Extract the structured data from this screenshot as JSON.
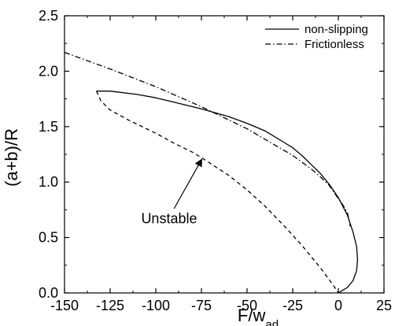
{
  "chart_data": {
    "type": "line",
    "xlabel": "F/w",
    "xlabel_sub": "ad",
    "ylabel": "(a+b)/R",
    "xlim": [
      -150,
      25
    ],
    "ylim": [
      0.0,
      2.5
    ],
    "x_ticks": [
      -150,
      -125,
      -100,
      -75,
      -50,
      -25,
      0,
      25
    ],
    "y_ticks": [
      0.0,
      0.5,
      1.0,
      1.5,
      2.0,
      2.5
    ],
    "x_tick_labels": [
      "-150",
      "-125",
      "-100",
      "-75",
      "-50",
      "-25",
      "0",
      "25"
    ],
    "y_tick_labels": [
      "0.0",
      "0.5",
      "1.0",
      "1.5",
      "2.0",
      "2.5"
    ],
    "grid": false,
    "legend_position": "top-right",
    "series": [
      {
        "name": "non-slipping",
        "style": "solid",
        "color": "#000000",
        "x": [
          -132.5,
          -125,
          -110,
          -100,
          -90,
          -75,
          -60,
          -50,
          -40,
          -30,
          -25,
          -20,
          -15,
          -10,
          -5,
          0,
          5,
          8,
          10,
          10.5,
          10,
          8,
          5,
          2,
          0
        ],
        "y": [
          1.82,
          1.82,
          1.79,
          1.76,
          1.72,
          1.66,
          1.59,
          1.53,
          1.46,
          1.36,
          1.31,
          1.24,
          1.16,
          1.08,
          0.98,
          0.86,
          0.7,
          0.55,
          0.42,
          0.3,
          0.2,
          0.11,
          0.05,
          0.02,
          0.0
        ]
      },
      {
        "name": "Frictionless",
        "style": "dashdot",
        "color": "#000000",
        "x": [
          -150,
          -125,
          -100,
          -75,
          -50,
          -25,
          -15,
          -10,
          -5,
          0,
          3,
          5,
          6,
          6.5
        ],
        "y": [
          2.17,
          2.02,
          1.86,
          1.68,
          1.48,
          1.24,
          1.12,
          1.05,
          0.97,
          0.85,
          0.78,
          0.72,
          0.65,
          0.6
        ]
      },
      {
        "name": "Unstable",
        "style": "dashed",
        "color": "#000000",
        "x": [
          -132.5,
          -130,
          -125,
          -115,
          -100,
          -90,
          -80,
          -75,
          -60,
          -50,
          -40,
          -30,
          -20,
          -10,
          -5,
          -2,
          0
        ],
        "y": [
          1.82,
          1.73,
          1.65,
          1.56,
          1.44,
          1.35,
          1.27,
          1.22,
          1.06,
          0.93,
          0.78,
          0.61,
          0.43,
          0.23,
          0.12,
          0.05,
          0.0
        ]
      }
    ],
    "legend": [
      {
        "label": "non-slipping",
        "style": "solid"
      },
      {
        "label": "Frictionless",
        "style": "dashdot"
      }
    ],
    "annotations": [
      {
        "text": "Unstable",
        "text_x": -108,
        "text_y": 0.63,
        "arrow_from": [
          -90,
          0.76
        ],
        "arrow_to": [
          -75,
          1.2
        ]
      }
    ]
  }
}
